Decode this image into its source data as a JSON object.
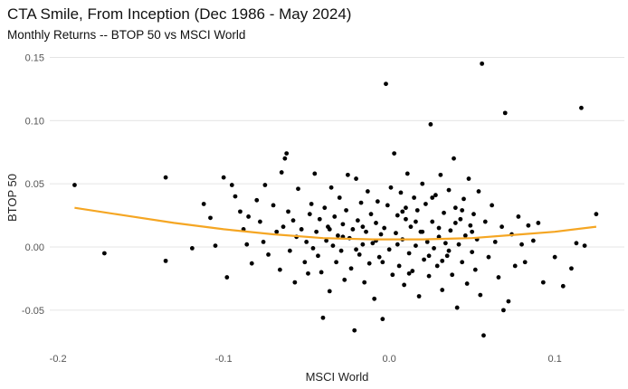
{
  "chart_data": {
    "type": "scatter",
    "title": "CTA Smile, From Inception (Dec 1986 - May 2024)",
    "subtitle": "Monthly Returns -- BTOP 50 vs MSCI World",
    "xlabel": "MSCI World",
    "ylabel": "BTOP 50",
    "xlim": [
      -0.205,
      0.142
    ],
    "ylim": [
      -0.078,
      0.156
    ],
    "x_ticks": [
      -0.2,
      -0.1,
      0.0,
      0.1
    ],
    "x_tick_labels": [
      "-0.2",
      "-0.1",
      "0.0",
      "0.1"
    ],
    "y_ticks": [
      -0.05,
      0.0,
      0.05,
      0.1,
      0.15
    ],
    "y_tick_labels": [
      "-0.05",
      "0.00",
      "0.05",
      "0.10",
      "0.15"
    ],
    "grid": true,
    "point_color": "#000000",
    "fit_line_color": "#F5A623",
    "fit_line": {
      "x": [
        -0.19,
        -0.16,
        -0.13,
        -0.1,
        -0.07,
        -0.04,
        -0.01,
        0.02,
        0.05,
        0.08,
        0.1,
        0.125
      ],
      "y": [
        0.031,
        0.025,
        0.019,
        0.014,
        0.01,
        0.007,
        0.006,
        0.006,
        0.007,
        0.01,
        0.012,
        0.016
      ]
    },
    "series": [
      {
        "name": "Monthly returns",
        "points": [
          [
            -0.19,
            0.049
          ],
          [
            -0.172,
            -0.005
          ],
          [
            -0.135,
            0.055
          ],
          [
            -0.135,
            -0.011
          ],
          [
            -0.119,
            -0.001
          ],
          [
            -0.112,
            0.034
          ],
          [
            -0.108,
            0.023
          ],
          [
            -0.105,
            0.001
          ],
          [
            -0.1,
            0.055
          ],
          [
            -0.098,
            -0.024
          ],
          [
            -0.095,
            0.049
          ],
          [
            -0.093,
            0.04
          ],
          [
            -0.09,
            0.028
          ],
          [
            -0.088,
            0.014
          ],
          [
            -0.086,
            0.002
          ],
          [
            -0.085,
            0.024
          ],
          [
            -0.083,
            -0.013
          ],
          [
            -0.08,
            0.037
          ],
          [
            -0.078,
            0.02
          ],
          [
            -0.076,
            0.004
          ],
          [
            -0.075,
            0.049
          ],
          [
            -0.073,
            -0.006
          ],
          [
            -0.07,
            0.033
          ],
          [
            -0.068,
            0.012
          ],
          [
            -0.066,
            -0.018
          ],
          [
            -0.065,
            0.059
          ],
          [
            -0.064,
            0.016
          ],
          [
            -0.063,
            0.07
          ],
          [
            -0.062,
            0.074
          ],
          [
            -0.061,
            0.028
          ],
          [
            -0.06,
            -0.003
          ],
          [
            -0.058,
            0.021
          ],
          [
            -0.057,
            -0.028
          ],
          [
            -0.056,
            0.008
          ],
          [
            -0.055,
            0.046
          ],
          [
            -0.053,
            0.014
          ],
          [
            -0.051,
            -0.012
          ],
          [
            -0.05,
            0.004
          ],
          [
            -0.049,
            -0.021
          ],
          [
            -0.048,
            0.026
          ],
          [
            -0.047,
            0.034
          ],
          [
            -0.046,
            -0.001
          ],
          [
            -0.045,
            0.058
          ],
          [
            -0.044,
            0.012
          ],
          [
            -0.043,
            -0.007
          ],
          [
            -0.042,
            0.022
          ],
          [
            -0.041,
            -0.02
          ],
          [
            -0.04,
            -0.056
          ],
          [
            -0.039,
            0.031
          ],
          [
            -0.038,
            0.005
          ],
          [
            -0.037,
            0.016
          ],
          [
            -0.036,
            -0.035
          ],
          [
            -0.035,
            0.047
          ],
          [
            -0.034,
            0.001
          ],
          [
            -0.033,
            0.024
          ],
          [
            -0.032,
            -0.012
          ],
          [
            -0.031,
            0.009
          ],
          [
            -0.03,
            0.039
          ],
          [
            -0.029,
            -0.003
          ],
          [
            -0.028,
            0.018
          ],
          [
            -0.027,
            -0.026
          ],
          [
            -0.026,
            0.029
          ],
          [
            -0.025,
            0.057
          ],
          [
            -0.024,
            0.007
          ],
          [
            -0.023,
            -0.017
          ],
          [
            -0.022,
            0.014
          ],
          [
            -0.021,
            -0.066
          ],
          [
            -0.02,
            0.054
          ],
          [
            -0.019,
            0.021
          ],
          [
            -0.018,
            -0.006
          ],
          [
            -0.017,
            0.035
          ],
          [
            -0.016,
            0.002
          ],
          [
            -0.015,
            -0.028
          ],
          [
            -0.014,
            0.012
          ],
          [
            -0.013,
            0.044
          ],
          [
            -0.012,
            -0.013
          ],
          [
            -0.011,
            0.026
          ],
          [
            -0.01,
            0.003
          ],
          [
            -0.009,
            -0.041
          ],
          [
            -0.008,
            0.019
          ],
          [
            -0.007,
            0.036
          ],
          [
            -0.006,
            -0.008
          ],
          [
            -0.005,
            0.01
          ],
          [
            -0.004,
            -0.057
          ],
          [
            -0.003,
            0.015
          ],
          [
            -0.002,
            0.129
          ],
          [
            -0.001,
            0.033
          ],
          [
            0.0,
            -0.002
          ],
          [
            0.001,
            0.047
          ],
          [
            0.002,
            -0.022
          ],
          [
            0.003,
            0.074
          ],
          [
            0.004,
            0.011
          ],
          [
            0.005,
            0.025
          ],
          [
            0.006,
            -0.015
          ],
          [
            0.007,
            0.043
          ],
          [
            0.008,
            0.006
          ],
          [
            0.009,
            -0.03
          ],
          [
            0.01,
            0.022
          ],
          [
            0.011,
            0.058
          ],
          [
            0.012,
            -0.005
          ],
          [
            0.013,
            0.016
          ],
          [
            0.014,
            -0.019
          ],
          [
            0.015,
            0.039
          ],
          [
            0.016,
            0.001
          ],
          [
            0.017,
            0.029
          ],
          [
            0.018,
            -0.039
          ],
          [
            0.019,
            0.012
          ],
          [
            0.02,
            0.05
          ],
          [
            0.021,
            -0.01
          ],
          [
            0.022,
            0.034
          ],
          [
            0.023,
            0.004
          ],
          [
            0.024,
            -0.023
          ],
          [
            0.025,
            0.097
          ],
          [
            0.026,
            0.02
          ],
          [
            0.027,
            -0.001
          ],
          [
            0.028,
            0.041
          ],
          [
            0.029,
            -0.015
          ],
          [
            0.03,
            0.008
          ],
          [
            0.031,
            0.057
          ],
          [
            0.032,
            -0.034
          ],
          [
            0.033,
            0.027
          ],
          [
            0.034,
            0.003
          ],
          [
            0.035,
            -0.007
          ],
          [
            0.036,
            0.045
          ],
          [
            0.037,
            0.013
          ],
          [
            0.038,
            -0.022
          ],
          [
            0.039,
            0.07
          ],
          [
            0.04,
            0.031
          ],
          [
            0.041,
            -0.048
          ],
          [
            0.042,
            0.002
          ],
          [
            0.043,
            0.022
          ],
          [
            0.044,
            -0.012
          ],
          [
            0.045,
            0.038
          ],
          [
            0.046,
            0.009
          ],
          [
            0.047,
            -0.029
          ],
          [
            0.048,
            0.054
          ],
          [
            0.049,
            0.017
          ],
          [
            0.05,
            -0.004
          ],
          [
            0.051,
            0.026
          ],
          [
            0.052,
            -0.018
          ],
          [
            0.053,
            0.006
          ],
          [
            0.054,
            0.044
          ],
          [
            0.055,
            -0.038
          ],
          [
            0.056,
            0.145
          ],
          [
            0.057,
            -0.07
          ],
          [
            0.058,
            0.02
          ],
          [
            0.06,
            -0.008
          ],
          [
            0.062,
            0.033
          ],
          [
            0.064,
            0.004
          ],
          [
            0.066,
            -0.024
          ],
          [
            0.068,
            0.016
          ],
          [
            0.069,
            -0.05
          ],
          [
            0.07,
            0.106
          ],
          [
            0.072,
            -0.043
          ],
          [
            0.074,
            0.01
          ],
          [
            0.076,
            -0.015
          ],
          [
            0.078,
            0.024
          ],
          [
            0.08,
            0.002
          ],
          [
            0.082,
            -0.012
          ],
          [
            0.084,
            0.017
          ],
          [
            0.087,
            0.005
          ],
          [
            0.09,
            0.019
          ],
          [
            0.093,
            -0.028
          ],
          [
            0.1,
            -0.008
          ],
          [
            0.105,
            -0.031
          ],
          [
            0.11,
            -0.017
          ],
          [
            0.113,
            0.003
          ],
          [
            0.116,
            0.11
          ],
          [
            0.118,
            0.001
          ],
          [
            0.125,
            0.026
          ],
          [
            0.01,
            0.031
          ],
          [
            -0.008,
            0.005
          ],
          [
            0.036,
            -0.003
          ],
          [
            0.02,
            0.012
          ],
          [
            -0.028,
            0.008
          ],
          [
            0.044,
            0.029
          ],
          [
            0.012,
            -0.021
          ],
          [
            -0.016,
            0.016
          ],
          [
            0.026,
            0.039
          ],
          [
            0.005,
            0.002
          ],
          [
            0.032,
            -0.011
          ],
          [
            -0.036,
            0.014
          ],
          [
            0.05,
            0.012
          ],
          [
            0.016,
            0.02
          ],
          [
            -0.004,
            -0.012
          ],
          [
            0.04,
            0.019
          ],
          [
            0.024,
            -0.007
          ],
          [
            -0.02,
            -0.002
          ],
          [
            0.008,
            0.028
          ],
          [
            0.03,
            0.015
          ]
        ]
      }
    ]
  }
}
